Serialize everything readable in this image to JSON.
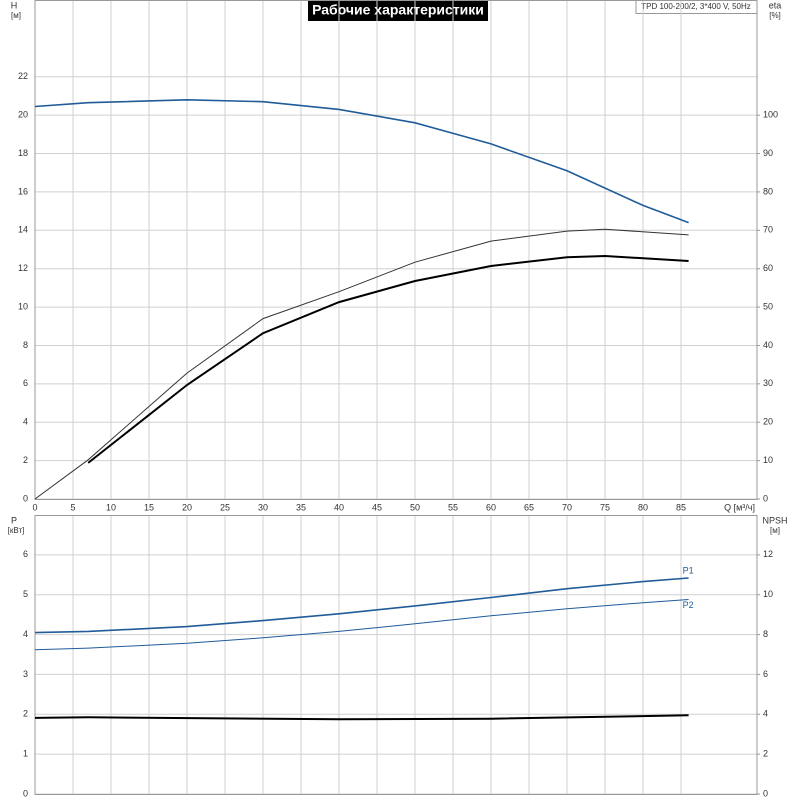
{
  "chart_data": [
    {
      "type": "line",
      "title": "Рабочие характеристики",
      "subtitle": "TPD 100-200/2, 3*400 V, 50Hz",
      "ylabel": "H",
      "yunit": "[м]",
      "y2label": "eta",
      "y2unit": "[%]",
      "xlabel": "Q [м³/ч]",
      "xlim": [
        0,
        95
      ],
      "xticks": [
        0,
        5,
        10,
        15,
        20,
        25,
        30,
        35,
        40,
        45,
        50,
        55,
        60,
        65,
        70,
        75,
        80,
        85
      ],
      "ylim": [
        0,
        26
      ],
      "yticks": [
        0,
        2,
        4,
        6,
        8,
        10,
        12,
        14,
        16,
        18,
        20,
        22
      ],
      "y2lim": [
        0,
        130
      ],
      "y2ticks": [
        0,
        10,
        20,
        30,
        40,
        50,
        60,
        70,
        80,
        90,
        100
      ],
      "grid": true,
      "series": [
        {
          "color": "#1f5c99",
          "width": 1.6,
          "x": [
            0,
            7,
            20,
            30,
            40,
            50,
            60,
            70,
            80,
            86
          ],
          "values": [
            20.45,
            20.65,
            20.8,
            20.7,
            20.3,
            19.6,
            18.5,
            17.1,
            15.3,
            14.4
          ]
        },
        {
          "color": "#333333",
          "width": 1,
          "axis": "y2",
          "x": [
            0,
            7,
            20,
            30,
            40,
            50,
            60,
            70,
            75,
            86
          ],
          "values": [
            0,
            10.2,
            32.8,
            47,
            54,
            61.7,
            67.2,
            69.8,
            70.3,
            68.8
          ]
        },
        {
          "color": "#000000",
          "width": 2,
          "axis": "y2",
          "x": [
            7,
            20,
            30,
            40,
            50,
            60,
            70,
            75,
            86
          ],
          "values": [
            9.4,
            29.7,
            43.2,
            51.3,
            56.8,
            60.7,
            63,
            63.3,
            62
          ]
        }
      ]
    },
    {
      "type": "line",
      "ylabel": "P",
      "yunit": "[кВт]",
      "y2label": "NPSH",
      "y2unit": "[м]",
      "xlim": [
        0,
        95
      ],
      "ylim": [
        0,
        7
      ],
      "yticks": [
        0,
        1,
        2,
        3,
        4,
        5,
        6
      ],
      "y2lim": [
        0,
        14
      ],
      "y2ticks": [
        0,
        2,
        4,
        6,
        8,
        10,
        12
      ],
      "grid": true,
      "series": [
        {
          "name": "P1",
          "color": "#1f5c99",
          "width": 1.6,
          "x": [
            0,
            7,
            20,
            30,
            40,
            50,
            60,
            70,
            80,
            86
          ],
          "values": [
            4.05,
            4.08,
            4.2,
            4.35,
            4.52,
            4.72,
            4.93,
            5.15,
            5.33,
            5.42
          ]
        },
        {
          "name": "P2",
          "color": "#1f5c99",
          "width": 1,
          "x": [
            0,
            7,
            20,
            30,
            40,
            50,
            60,
            70,
            80,
            86
          ],
          "values": [
            3.62,
            3.66,
            3.78,
            3.92,
            4.08,
            4.27,
            4.47,
            4.65,
            4.8,
            4.88
          ]
        },
        {
          "color": "#000000",
          "width": 2,
          "axis": "y2",
          "x": [
            0,
            7,
            40,
            60,
            86
          ],
          "values": [
            3.82,
            3.85,
            3.75,
            3.78,
            3.95
          ]
        }
      ]
    }
  ]
}
